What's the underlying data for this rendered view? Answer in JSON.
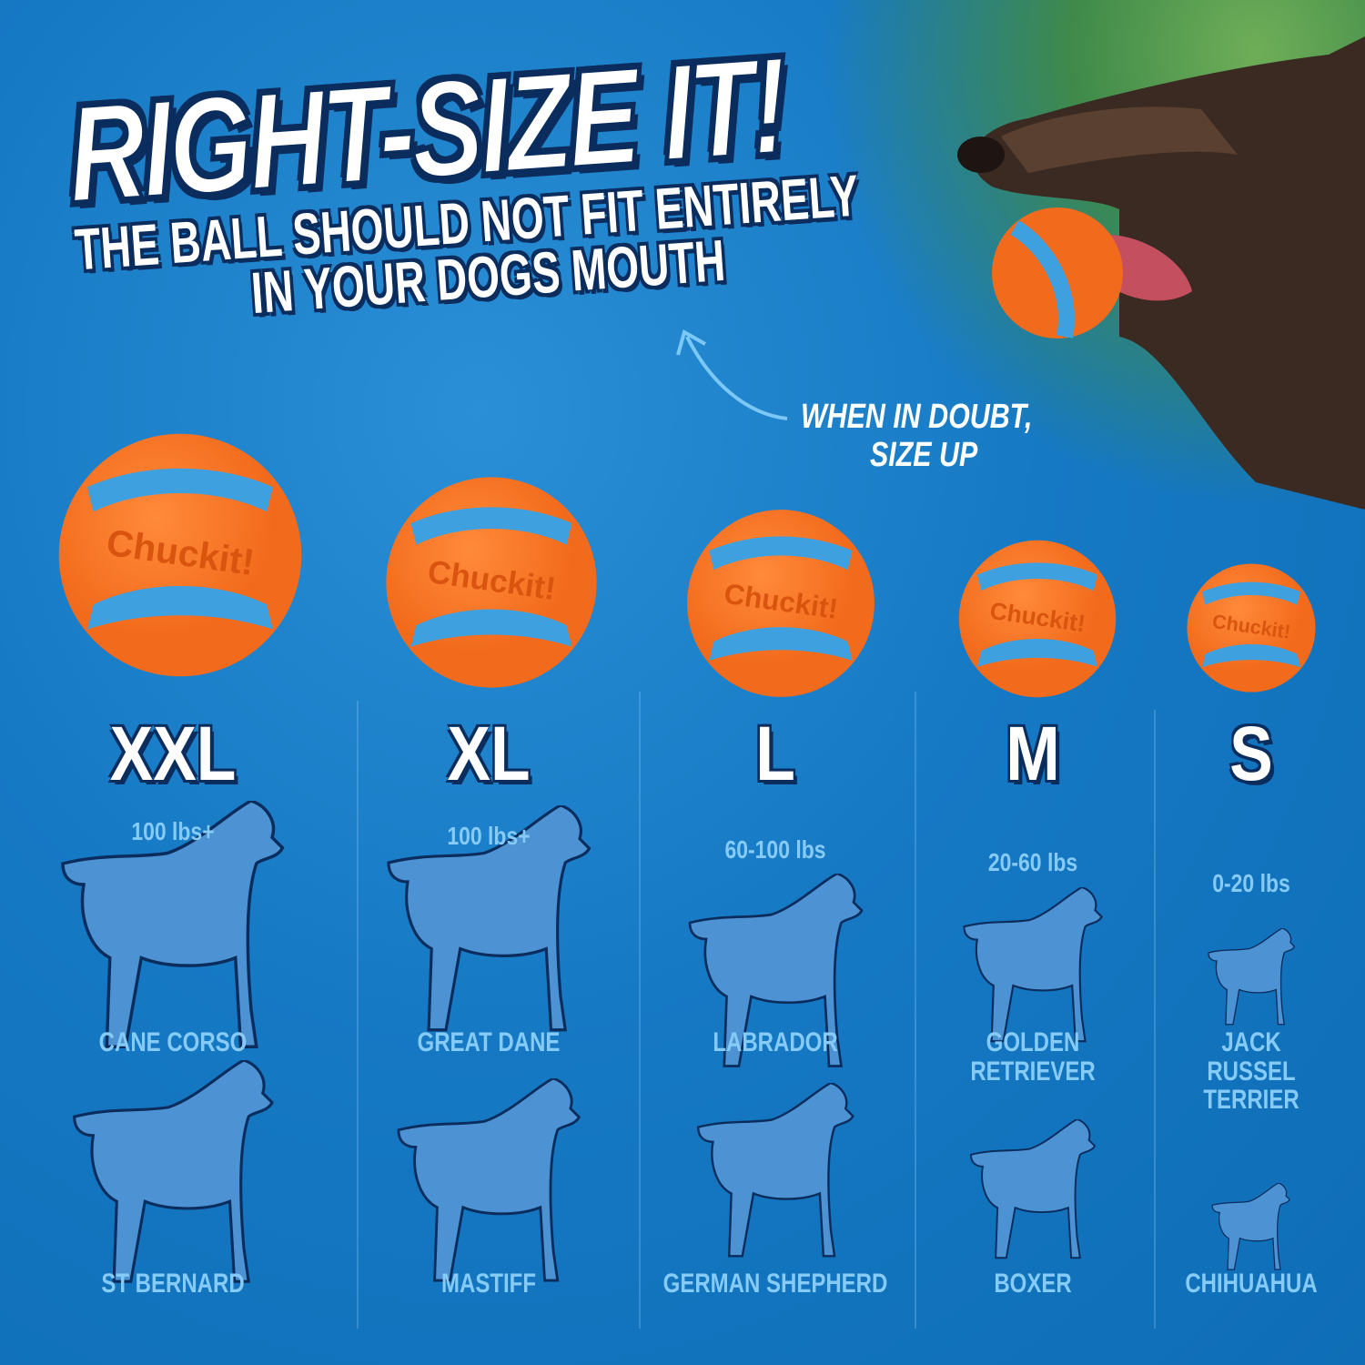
{
  "headline": {
    "title": "RIGHT-SIZE IT!",
    "line1": "THE BALL SHOULD NOT FIT ENTIRELY",
    "line2": "IN YOUR DOGS MOUTH"
  },
  "tip": {
    "line1": "WHEN IN DOUBT,",
    "line2": "SIZE UP"
  },
  "ball": {
    "brand": "Chuckit!",
    "orange": "#f26a1b",
    "blue": "#3fa0e0"
  },
  "colors": {
    "background": "#1679c4",
    "silhouette": "#4d93d3",
    "outline": "#0b2d5e",
    "label": "#86cbf5"
  },
  "sizes": [
    {
      "size": "XXL",
      "weight": "100 lbs+",
      "breed1": "CANE CORSO",
      "breed2": "ST BERNARD"
    },
    {
      "size": "XL",
      "weight": "100 lbs+",
      "breed1": "GREAT DANE",
      "breed2": "MASTIFF"
    },
    {
      "size": "L",
      "weight": "60-100 lbs",
      "breed1": "LABRADOR",
      "breed2": "GERMAN SHEPHERD"
    },
    {
      "size": "M",
      "weight": "20-60 lbs",
      "breed1": "GOLDEN RETRIEVER",
      "breed2": "BOXER"
    },
    {
      "size": "S",
      "weight": "0-20 lbs",
      "breed1": "JACK RUSSEL TERRIER",
      "breed2": "CHIHUAHUA"
    }
  ]
}
